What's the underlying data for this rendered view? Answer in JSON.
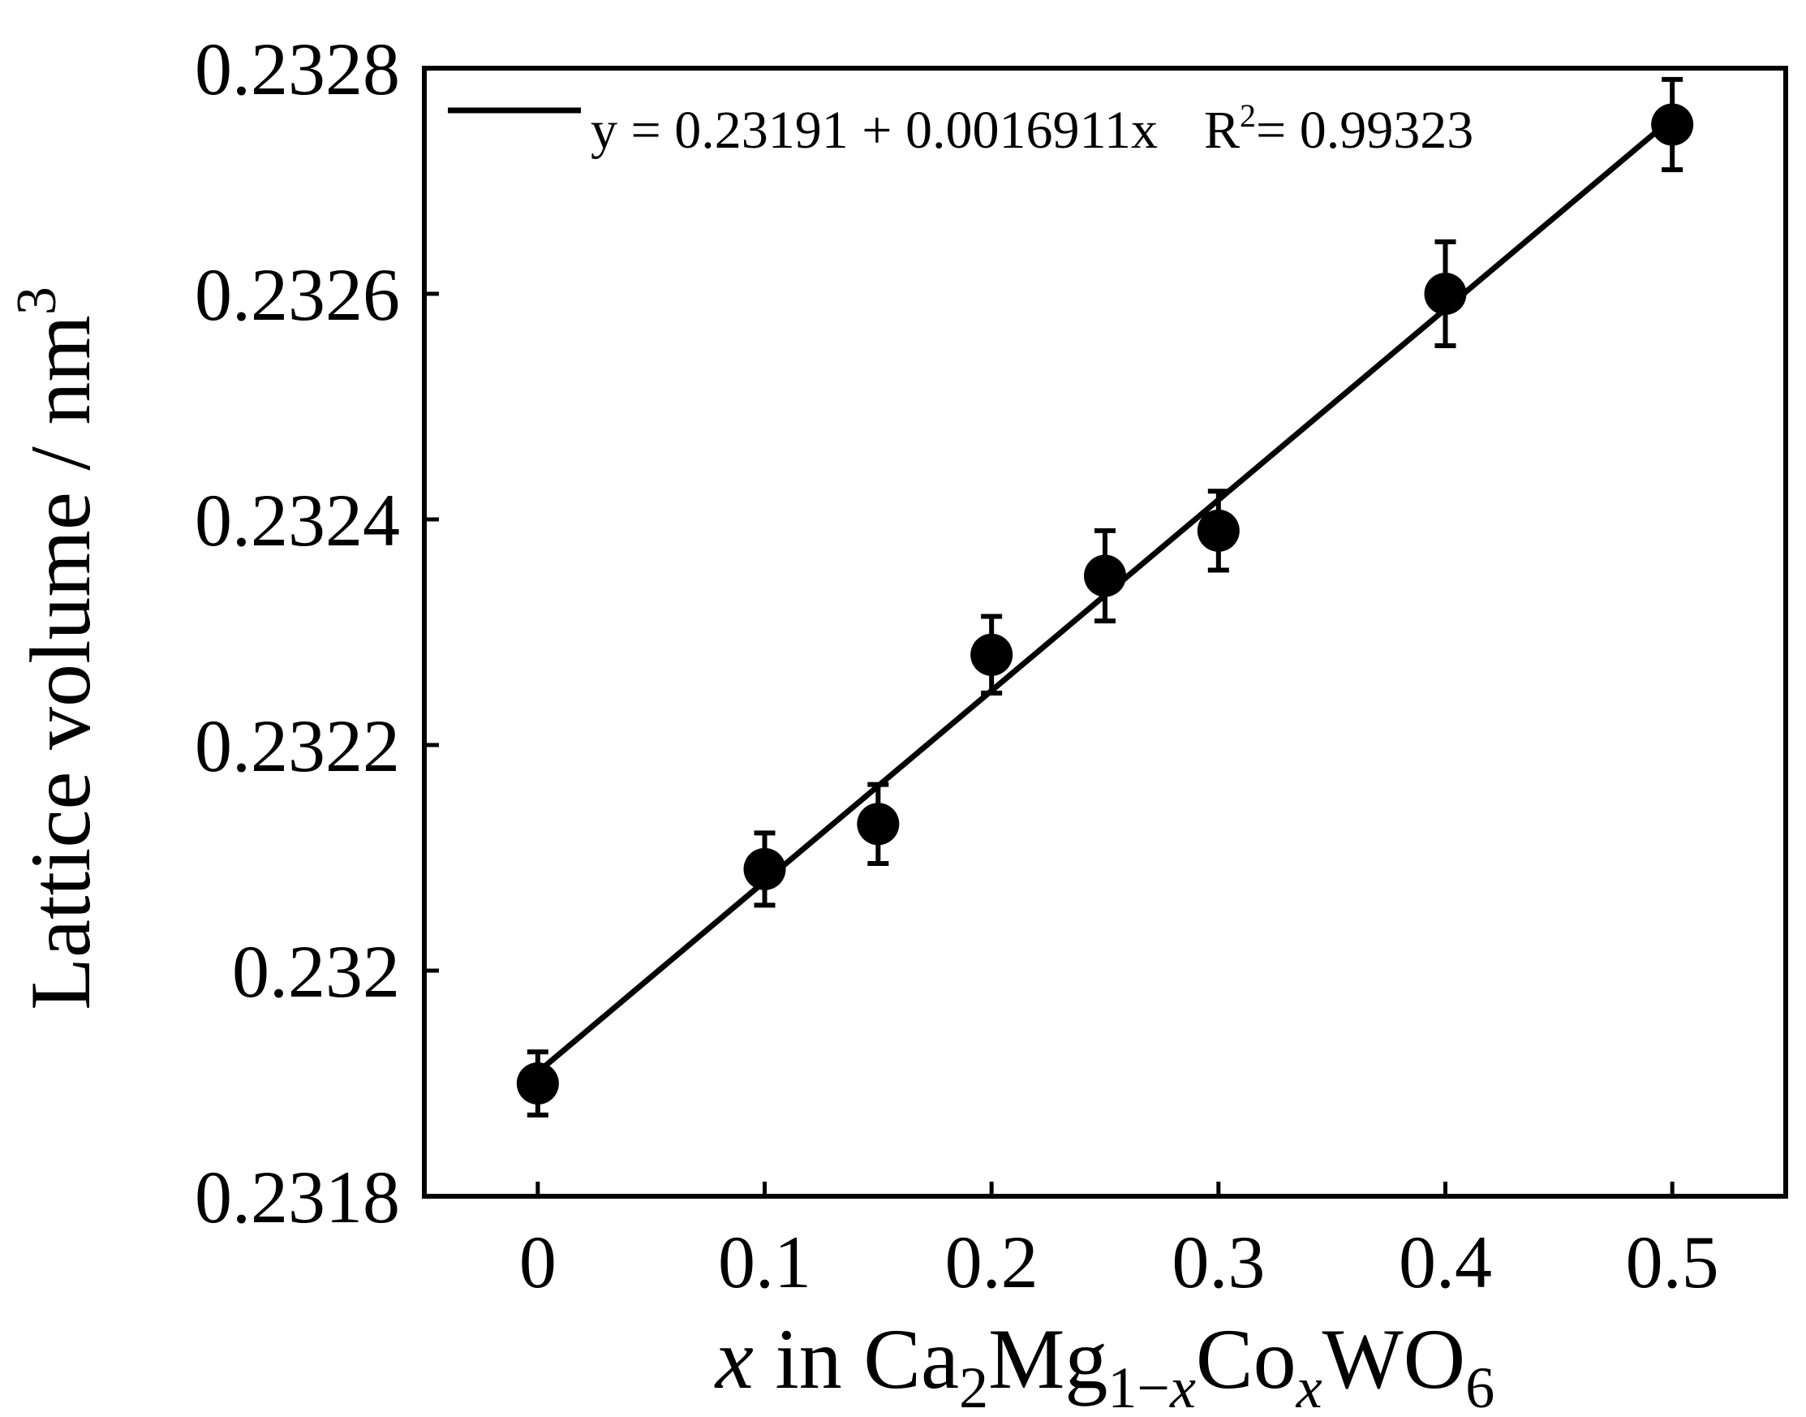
{
  "chart_data": {
    "type": "scatter",
    "title": "",
    "xlabel": {
      "parts": [
        {
          "text": "x",
          "style": "italic"
        },
        {
          "text": " in Ca",
          "style": "normal"
        },
        {
          "text": "2",
          "style": "sub"
        },
        {
          "text": "Mg",
          "style": "normal"
        },
        {
          "text": "1−",
          "style": "sub"
        },
        {
          "text": "x",
          "style": "sub-italic"
        },
        {
          "text": "Co",
          "style": "normal"
        },
        {
          "text": "x",
          "style": "sub-italic"
        },
        {
          "text": "WO",
          "style": "normal"
        },
        {
          "text": "6",
          "style": "sub"
        }
      ]
    },
    "ylabel": {
      "main": "Lattice volume / nm",
      "sup": "3"
    },
    "xlim": [
      -0.05,
      0.55
    ],
    "ylim": [
      0.2318,
      0.2328
    ],
    "xticks": [
      {
        "value": 0,
        "label": "0"
      },
      {
        "value": 0.1,
        "label": "0.1"
      },
      {
        "value": 0.2,
        "label": "0.2"
      },
      {
        "value": 0.3,
        "label": "0.3"
      },
      {
        "value": 0.4,
        "label": "0.4"
      },
      {
        "value": 0.5,
        "label": "0.5"
      }
    ],
    "yticks": [
      {
        "value": 0.2318,
        "label": "0.2318"
      },
      {
        "value": 0.232,
        "label": "0.232"
      },
      {
        "value": 0.2322,
        "label": "0.2322"
      },
      {
        "value": 0.2324,
        "label": "0.2324"
      },
      {
        "value": 0.2326,
        "label": "0.2326"
      },
      {
        "value": 0.2328,
        "label": "0.2328"
      }
    ],
    "grid": false,
    "legend_position": "top-left",
    "points": [
      {
        "x": 0.0,
        "y": 0.2319,
        "err": 2.8e-05
      },
      {
        "x": 0.1,
        "y": 0.23209,
        "err": 3.2e-05
      },
      {
        "x": 0.15,
        "y": 0.23213,
        "err": 3.5e-05
      },
      {
        "x": 0.2,
        "y": 0.23228,
        "err": 3.4e-05
      },
      {
        "x": 0.25,
        "y": 0.23235,
        "err": 4e-05
      },
      {
        "x": 0.3,
        "y": 0.23239,
        "err": 3.5e-05
      },
      {
        "x": 0.4,
        "y": 0.2326,
        "err": 4.6e-05
      },
      {
        "x": 0.5,
        "y": 0.23275,
        "err": 4e-05
      }
    ],
    "fit": {
      "intercept": 0.23191,
      "slope": 0.0016911,
      "x_range": [
        0,
        0.5
      ],
      "equation": "y = 0.23191 + 0.0016911x",
      "r2_prefix": "R",
      "r2_sup": "2",
      "r2_value": "= 0.99323"
    },
    "colors": {
      "marker": "#000000",
      "line": "#000000",
      "axis": "#000000"
    }
  }
}
